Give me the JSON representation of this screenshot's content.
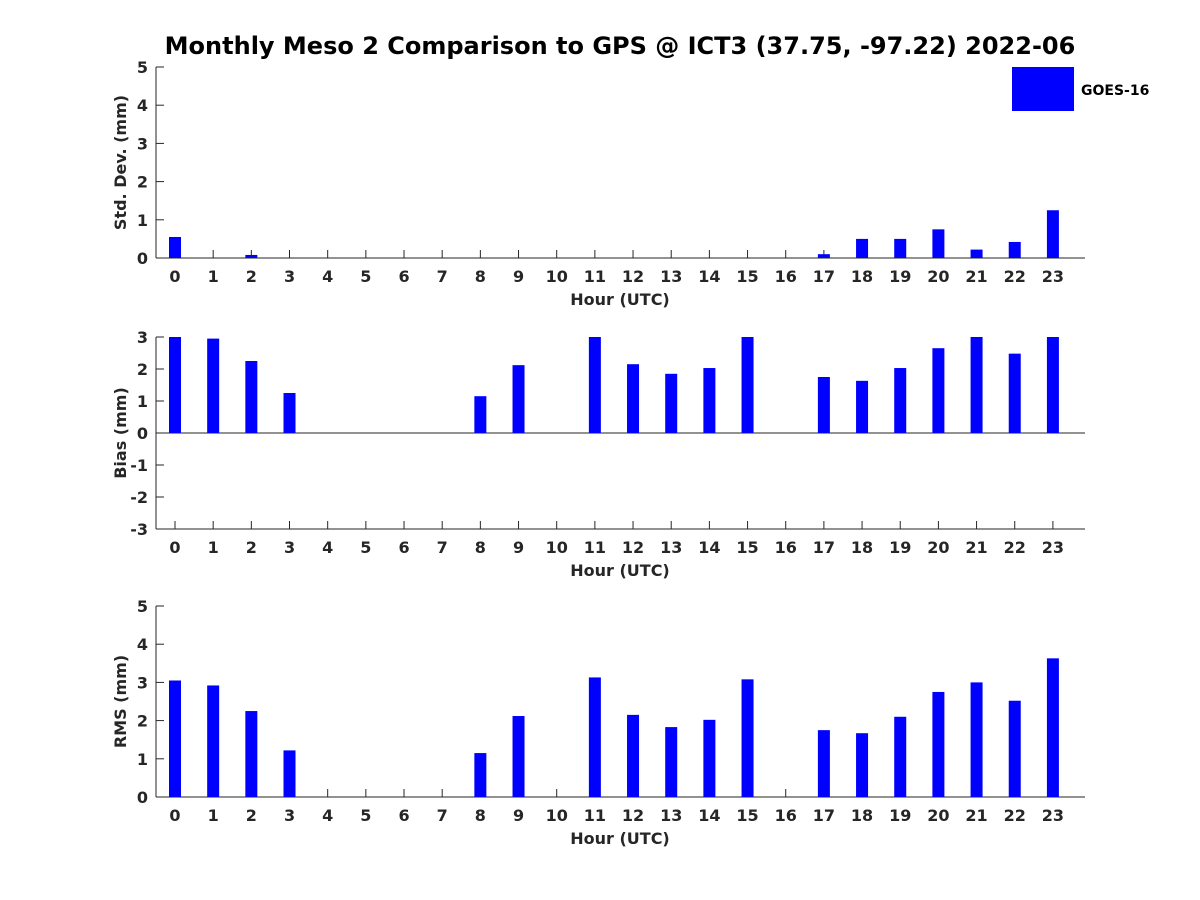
{
  "title": "Monthly Meso 2 Comparison to GPS @ ICT3 (37.75, -97.22) 2022-06",
  "legend": {
    "label": "GOES-16",
    "color": "#0000ff"
  },
  "chart_data": [
    {
      "type": "bar",
      "categories": [
        "0",
        "1",
        "2",
        "3",
        "4",
        "5",
        "6",
        "7",
        "8",
        "9",
        "10",
        "11",
        "12",
        "13",
        "14",
        "15",
        "16",
        "17",
        "18",
        "19",
        "20",
        "21",
        "22",
        "23"
      ],
      "series": [
        {
          "name": "GOES-16",
          "values": [
            0.55,
            0,
            0.08,
            0,
            0,
            0,
            0,
            0,
            0,
            0,
            0,
            0,
            0,
            0,
            0,
            0,
            0,
            0.1,
            0.5,
            0.5,
            0.75,
            0.22,
            0.42,
            1.25
          ]
        }
      ],
      "xlabel": "Hour (UTC)",
      "ylabel": "Std. Dev. (mm)",
      "ylim": [
        0,
        5
      ],
      "yticks": [
        "0",
        "1",
        "2",
        "3",
        "4",
        "5"
      ],
      "legend_position": "top-right"
    },
    {
      "type": "bar",
      "categories": [
        "0",
        "1",
        "2",
        "3",
        "4",
        "5",
        "6",
        "7",
        "8",
        "9",
        "10",
        "11",
        "12",
        "13",
        "14",
        "15",
        "16",
        "17",
        "18",
        "19",
        "20",
        "21",
        "22",
        "23"
      ],
      "series": [
        {
          "name": "GOES-16",
          "values": [
            3.0,
            2.95,
            2.25,
            1.25,
            0,
            0,
            0,
            0,
            1.15,
            2.12,
            0,
            3.0,
            2.15,
            1.85,
            2.03,
            3.0,
            0,
            1.75,
            1.63,
            2.03,
            2.65,
            3.0,
            2.48,
            3.0
          ]
        }
      ],
      "xlabel": "Hour (UTC)",
      "ylabel": "Bias (mm)",
      "ylim": [
        -3,
        3
      ],
      "yticks": [
        "-3",
        "-2",
        "-1",
        "0",
        "1",
        "2",
        "3"
      ]
    },
    {
      "type": "bar",
      "categories": [
        "0",
        "1",
        "2",
        "3",
        "4",
        "5",
        "6",
        "7",
        "8",
        "9",
        "10",
        "11",
        "12",
        "13",
        "14",
        "15",
        "16",
        "17",
        "18",
        "19",
        "20",
        "21",
        "22",
        "23"
      ],
      "series": [
        {
          "name": "GOES-16",
          "values": [
            3.05,
            2.92,
            2.25,
            1.22,
            0,
            0,
            0,
            0,
            1.15,
            2.12,
            0,
            3.13,
            2.15,
            1.83,
            2.02,
            3.08,
            0,
            1.75,
            1.67,
            2.1,
            2.75,
            3.0,
            2.52,
            3.63
          ]
        }
      ],
      "xlabel": "Hour (UTC)",
      "ylabel": "RMS (mm)",
      "ylim": [
        0,
        5
      ],
      "yticks": [
        "0",
        "1",
        "2",
        "3",
        "4",
        "5"
      ]
    }
  ]
}
